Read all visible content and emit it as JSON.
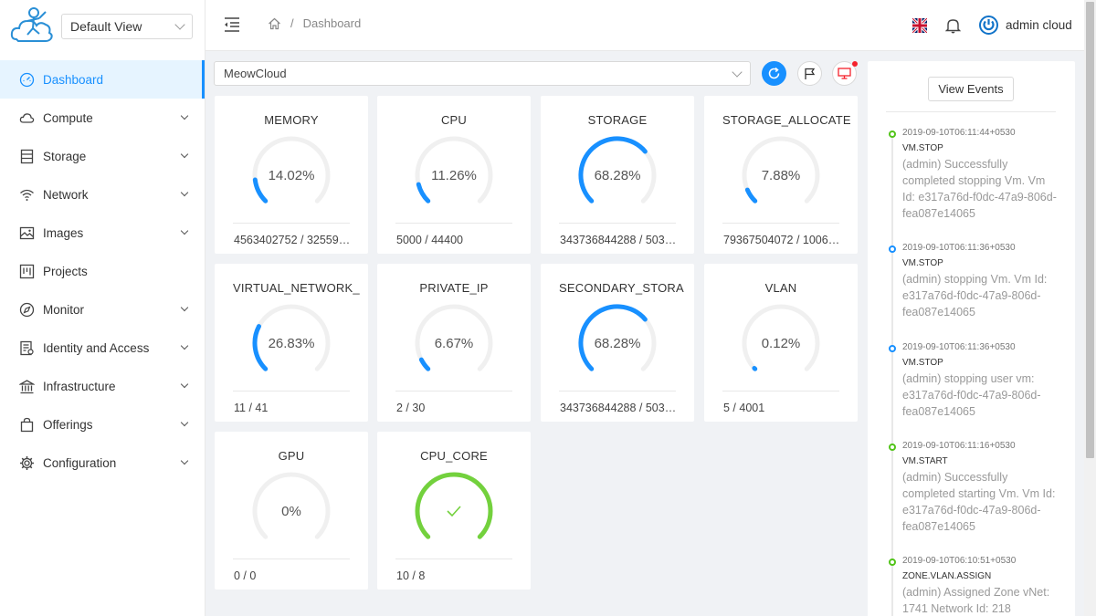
{
  "sidebar": {
    "view_select": "Default View",
    "items": [
      {
        "label": "Dashboard",
        "icon": "dashboard-icon",
        "active": true,
        "expandable": false
      },
      {
        "label": "Compute",
        "icon": "cloud-icon",
        "expandable": true
      },
      {
        "label": "Storage",
        "icon": "database-icon",
        "expandable": true
      },
      {
        "label": "Network",
        "icon": "wifi-icon",
        "expandable": true
      },
      {
        "label": "Images",
        "icon": "picture-icon",
        "expandable": true
      },
      {
        "label": "Projects",
        "icon": "project-icon",
        "expandable": false
      },
      {
        "label": "Monitor",
        "icon": "compass-icon",
        "expandable": true
      },
      {
        "label": "Identity and Access",
        "icon": "id-card-icon",
        "expandable": true
      },
      {
        "label": "Infrastructure",
        "icon": "bank-icon",
        "expandable": true
      },
      {
        "label": "Offerings",
        "icon": "shopping-icon",
        "expandable": true
      },
      {
        "label": "Configuration",
        "icon": "settings-icon",
        "expandable": true
      }
    ]
  },
  "header": {
    "breadcrumb_sep": "/",
    "breadcrumb_current": "Dashboard",
    "user_name": "admin cloud"
  },
  "zone_select": "MeowCloud",
  "colors": {
    "accent": "#1890ff",
    "success": "#52c41a",
    "gauge_ok": "#73d13d",
    "alert": "#f5222d"
  },
  "cards": [
    {
      "title": "MEMORY",
      "percent": "14.02%",
      "value": 14.02,
      "footer": "4563402752 / 32559…"
    },
    {
      "title": "CPU",
      "percent": "11.26%",
      "value": 11.26,
      "footer": "5000 / 44400"
    },
    {
      "title": "STORAGE",
      "percent": "68.28%",
      "value": 68.28,
      "footer": "343736844288 / 503…"
    },
    {
      "title": "STORAGE_ALLOCATE",
      "percent": "7.88%",
      "value": 7.88,
      "footer": "79367504072 / 1006…"
    },
    {
      "title": "VIRTUAL_NETWORK_",
      "percent": "26.83%",
      "value": 26.83,
      "footer": "11 / 41"
    },
    {
      "title": "PRIVATE_IP",
      "percent": "6.67%",
      "value": 6.67,
      "footer": "2 / 30"
    },
    {
      "title": "SECONDARY_STORA",
      "percent": "68.28%",
      "value": 68.28,
      "footer": "343736844288 / 503…"
    },
    {
      "title": "VLAN",
      "percent": "0.12%",
      "value": 0.12,
      "footer": "5 / 4001"
    },
    {
      "title": "GPU",
      "percent": "0%",
      "value": 0,
      "footer": "0 / 0"
    },
    {
      "title": "CPU_CORE",
      "percent": "",
      "value": 100,
      "complete": true,
      "footer": "10 / 8"
    }
  ],
  "events": {
    "button": "View Events",
    "items": [
      {
        "time": "2019-09-10T06:11:44+0530",
        "type": "VM.STOP",
        "desc": "(admin) Successfully completed stopping Vm. Vm Id: e317a76d-f0dc-47a9-806d-fea087e14065",
        "status": "green"
      },
      {
        "time": "2019-09-10T06:11:36+0530",
        "type": "VM.STOP",
        "desc": "(admin) stopping Vm. Vm Id: e317a76d-f0dc-47a9-806d-fea087e14065",
        "status": "blue"
      },
      {
        "time": "2019-09-10T06:11:36+0530",
        "type": "VM.STOP",
        "desc": "(admin) stopping user vm: e317a76d-f0dc-47a9-806d-fea087e14065",
        "status": "blue"
      },
      {
        "time": "2019-09-10T06:11:16+0530",
        "type": "VM.START",
        "desc": "(admin) Successfully completed starting Vm. Vm Id: e317a76d-f0dc-47a9-806d-fea087e14065",
        "status": "green"
      },
      {
        "time": "2019-09-10T06:10:51+0530",
        "type": "ZONE.VLAN.ASSIGN",
        "desc": "(admin) Assigned Zone vNet: 1741 Network Id: 218",
        "status": "green"
      }
    ]
  }
}
